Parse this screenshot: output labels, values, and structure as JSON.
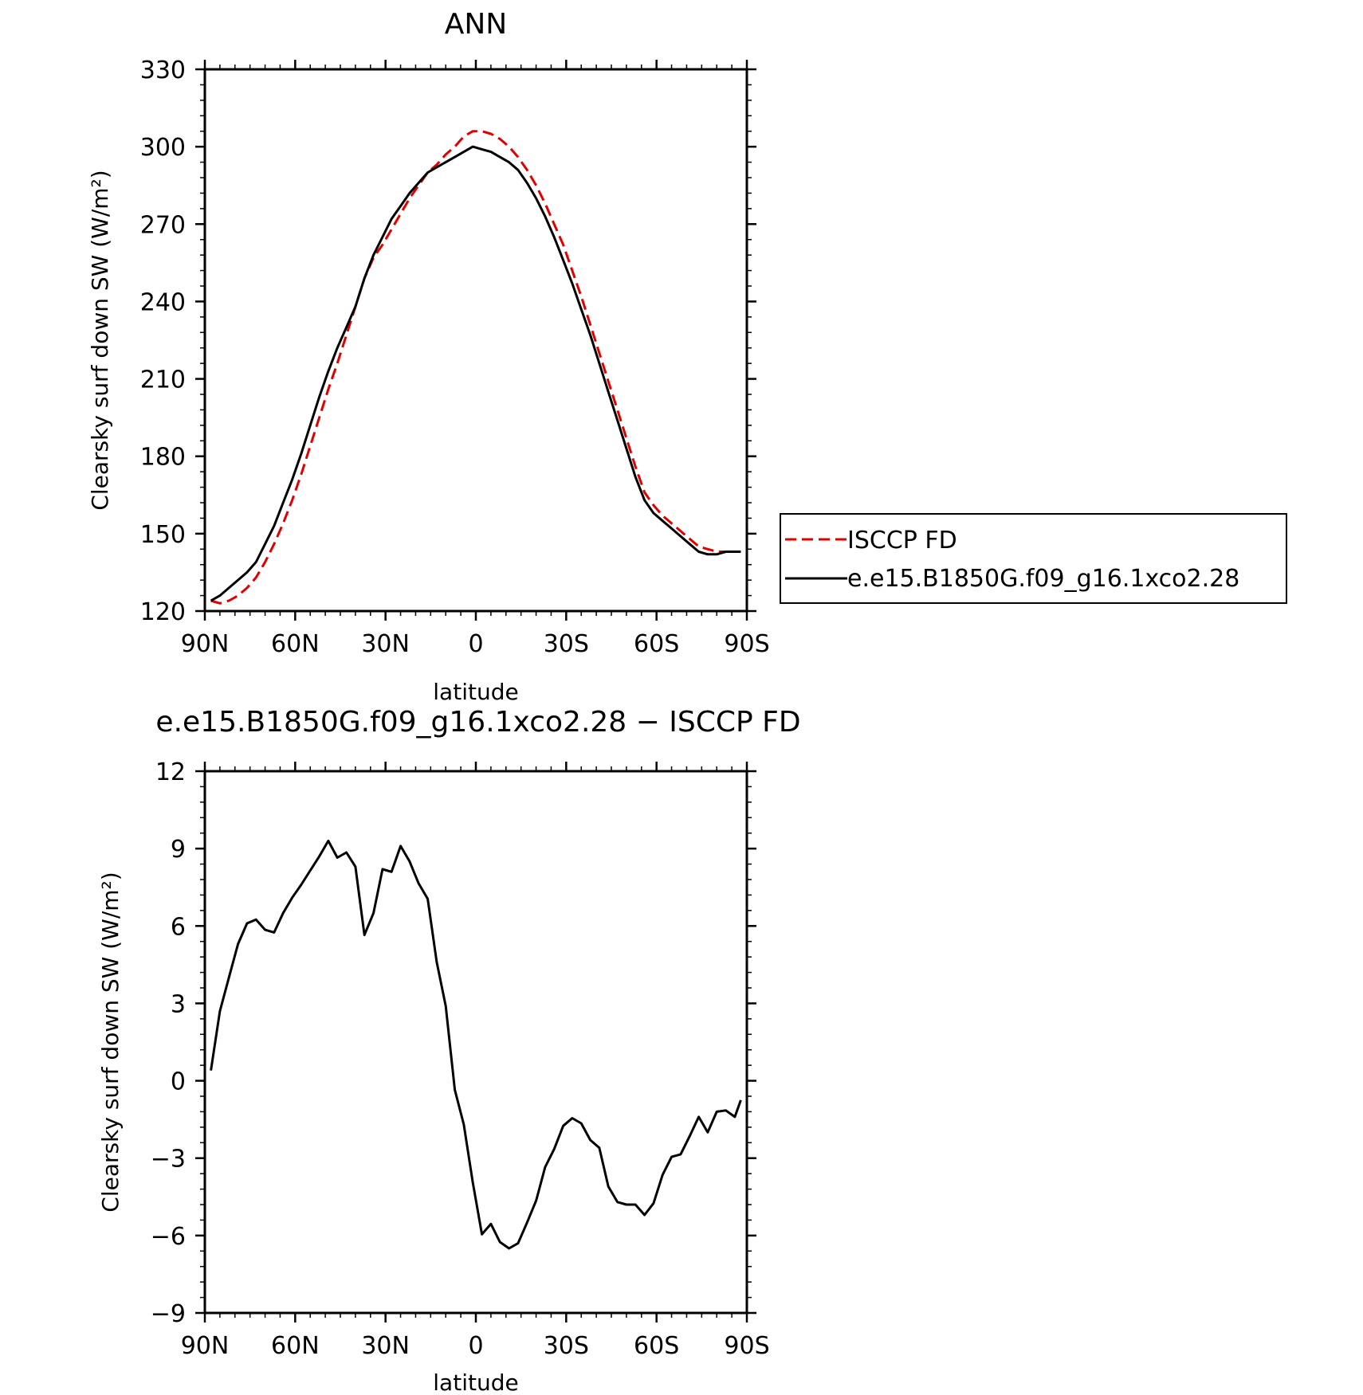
{
  "chart_data": [
    {
      "type": "line",
      "title": "ANN",
      "xlabel": "latitude",
      "ylabel": "Clearsky surf down SW (W/m²)",
      "xlim": [
        -90,
        90
      ],
      "ylim": [
        120,
        330
      ],
      "x_ticks": [
        "90N",
        "60N",
        "30N",
        "0",
        "30S",
        "60S",
        "90S"
      ],
      "y_ticks": [
        "120",
        "150",
        "180",
        "210",
        "240",
        "270",
        "300",
        "330"
      ],
      "legend": {
        "placement": "right"
      },
      "series": [
        {
          "name": "ISCCP FD",
          "color": "#e00000",
          "style": "dashed",
          "x": [
            -88,
            -85,
            -82,
            -79,
            -76,
            -73,
            -70,
            -67,
            -64,
            -61,
            -58,
            -55,
            -52,
            -49,
            -46,
            -43,
            -40,
            -37,
            -34,
            -31,
            -28,
            -25,
            -22,
            -19,
            -16,
            -13,
            -10,
            -7,
            -4,
            -1,
            2,
            5,
            8,
            11,
            14,
            17,
            20,
            23,
            26,
            29,
            32,
            35,
            38,
            41,
            44,
            47,
            50,
            53,
            56,
            59,
            62,
            65,
            68,
            71,
            74,
            77,
            80,
            83,
            86,
            88
          ],
          "values": [
            124,
            123,
            124,
            126,
            129,
            133,
            139,
            146,
            154,
            163,
            173,
            184,
            195,
            206,
            216,
            227,
            238,
            249,
            257,
            262,
            268,
            274,
            280,
            285,
            290,
            293,
            297,
            300,
            304,
            306,
            306,
            305,
            303,
            300,
            296,
            291,
            285,
            278,
            270,
            262,
            252,
            242,
            231,
            220,
            209,
            198,
            187,
            176,
            166,
            161,
            157,
            154,
            151,
            148,
            145,
            144,
            143,
            143,
            143,
            143
          ]
        },
        {
          "name": "e.e15.B1850G.f09_g16.1xco2.28",
          "color": "#000000",
          "style": "solid",
          "x": [
            -88,
            -85,
            -82,
            -79,
            -76,
            -73,
            -70,
            -67,
            -64,
            -61,
            -58,
            -55,
            -52,
            -49,
            -46,
            -43,
            -40,
            -37,
            -34,
            -31,
            -28,
            -25,
            -22,
            -19,
            -16,
            -13,
            -10,
            -7,
            -4,
            -1,
            2,
            5,
            8,
            11,
            14,
            17,
            20,
            23,
            26,
            29,
            32,
            35,
            38,
            41,
            44,
            47,
            50,
            53,
            56,
            59,
            62,
            65,
            68,
            71,
            74,
            77,
            80,
            83,
            86,
            88
          ],
          "values": [
            124,
            126,
            129,
            132,
            135,
            139,
            146,
            153,
            162,
            171,
            181,
            192,
            203,
            213,
            222,
            230,
            238,
            249,
            258,
            265,
            272,
            277,
            282,
            286,
            290,
            292,
            294,
            296,
            298,
            300,
            299,
            298,
            296,
            294,
            291,
            286,
            280,
            273,
            265,
            256,
            247,
            237,
            227,
            216,
            205,
            194,
            183,
            172,
            163,
            158,
            155,
            152,
            149,
            146,
            143,
            142,
            142,
            143,
            143,
            143
          ]
        }
      ]
    },
    {
      "type": "line",
      "title": "e.e15.B1850G.f09_g16.1xco2.28 − ISCCP FD",
      "xlabel": "latitude",
      "ylabel": "Clearsky surf down SW (W/m²)",
      "xlim": [
        -90,
        90
      ],
      "ylim": [
        -9,
        12
      ],
      "x_ticks": [
        "90N",
        "60N",
        "30N",
        "0",
        "30S",
        "60S",
        "90S"
      ],
      "y_ticks": [
        "−9",
        "−6",
        "−3",
        "0",
        "3",
        "6",
        "9",
        "12"
      ],
      "series": [
        {
          "color": "#000000",
          "style": "solid",
          "x": [
            -88,
            -85,
            -82,
            -79,
            -76,
            -73,
            -70,
            -67,
            -64,
            -61,
            -58,
            -55,
            -52,
            -49,
            -46,
            -43,
            -40,
            -37,
            -34,
            -31,
            -28,
            -25,
            -22,
            -19,
            -16,
            -13,
            -10,
            -7,
            -4,
            -1,
            2,
            5,
            8,
            11,
            14,
            17,
            20,
            23,
            26,
            29,
            32,
            35,
            38,
            41,
            44,
            47,
            50,
            53,
            56,
            59,
            62,
            65,
            68,
            71,
            74,
            77,
            80,
            83,
            86,
            88
          ],
          "values": [
            0.4,
            2.7,
            4.0,
            5.3,
            6.1,
            6.25,
            5.85,
            5.75,
            6.5,
            7.1,
            7.6,
            8.15,
            8.7,
            9.3,
            8.65,
            8.85,
            8.3,
            5.65,
            6.5,
            8.2,
            8.1,
            9.1,
            8.5,
            7.65,
            7.05,
            4.6,
            2.9,
            -0.35,
            -1.7,
            -3.95,
            -5.95,
            -5.55,
            -6.25,
            -6.5,
            -6.3,
            -5.5,
            -4.65,
            -3.35,
            -2.65,
            -1.75,
            -1.45,
            -1.65,
            -2.3,
            -2.6,
            -4.1,
            -4.7,
            -4.8,
            -4.8,
            -5.2,
            -4.75,
            -3.65,
            -2.95,
            -2.85,
            -2.15,
            -1.4,
            -2.0,
            -1.2,
            -1.15,
            -1.4,
            -0.75
          ]
        }
      ]
    }
  ]
}
